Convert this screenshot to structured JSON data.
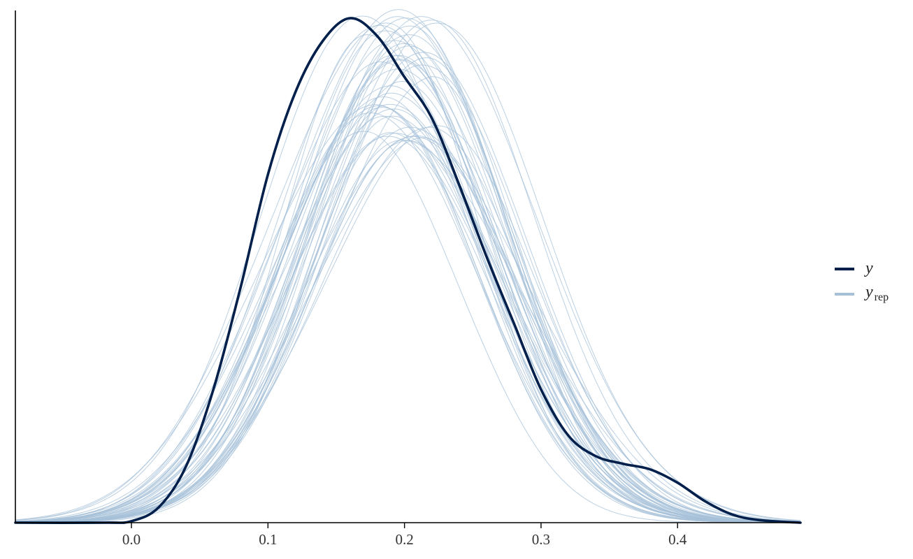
{
  "chart_data": {
    "type": "line",
    "title": "",
    "xlabel": "",
    "ylabel": "",
    "xlim": [
      -0.085,
      0.49
    ],
    "xticks": [
      0.0,
      0.1,
      0.2,
      0.3,
      0.4
    ],
    "tick_labels": [
      "0.0",
      "0.1",
      "0.2",
      "0.3",
      "0.4"
    ],
    "y_axis_labels": "none",
    "grid": false,
    "legend": {
      "placement": "right",
      "entries": [
        {
          "label": "y",
          "subscript": "",
          "color": "#011f4b"
        },
        {
          "label": "y",
          "subscript": "rep",
          "color": "#a6c0d8"
        }
      ]
    },
    "colors": {
      "y": "#011f4b",
      "yrep": "#a6c0d8",
      "axis": "#000000"
    },
    "y_density": {
      "name": "y",
      "x": [
        -0.085,
        -0.02,
        0.0,
        0.02,
        0.04,
        0.06,
        0.08,
        0.1,
        0.12,
        0.14,
        0.16,
        0.18,
        0.2,
        0.22,
        0.24,
        0.26,
        0.28,
        0.3,
        0.32,
        0.34,
        0.36,
        0.38,
        0.4,
        0.42,
        0.44,
        0.46,
        0.49
      ],
      "values": [
        0.0,
        0.0,
        0.003,
        0.03,
        0.11,
        0.26,
        0.46,
        0.68,
        0.84,
        0.94,
        0.985,
        0.95,
        0.87,
        0.79,
        0.66,
        0.52,
        0.39,
        0.26,
        0.17,
        0.13,
        0.115,
        0.104,
        0.078,
        0.042,
        0.016,
        0.005,
        0.0
      ]
    },
    "yrep_summary": {
      "name": "y_rep",
      "draws": 50,
      "typical_peak_x": 0.195,
      "typical_peak_density": 0.88,
      "max_peak_density": 1.0,
      "peak_density_range": [
        0.74,
        1.0
      ],
      "peak_x_range": [
        0.175,
        0.22
      ],
      "sd_range": [
        0.068,
        0.08
      ]
    }
  }
}
